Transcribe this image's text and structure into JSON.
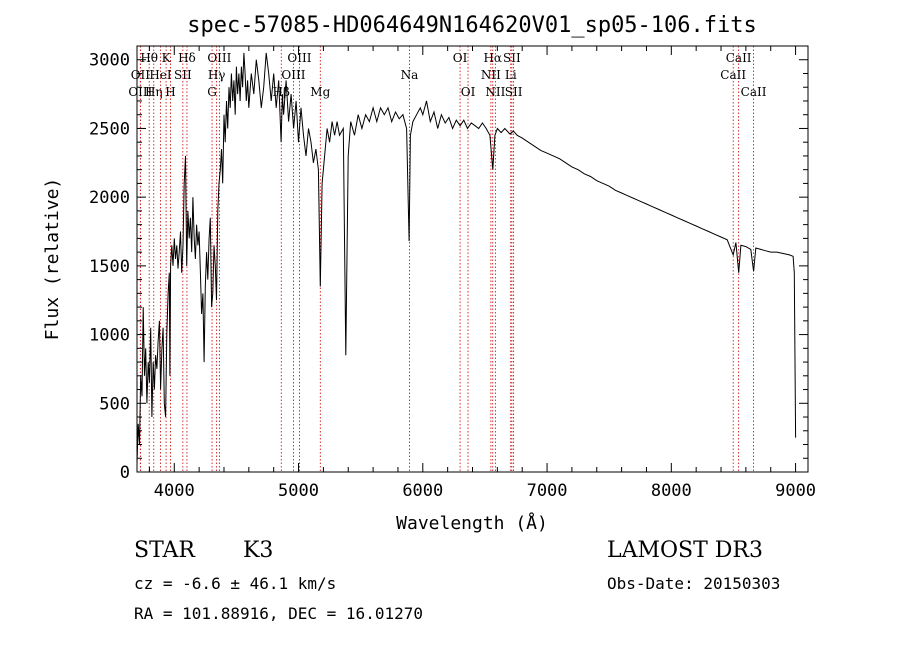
{
  "chart_data": {
    "type": "line",
    "title": "spec-57085-HD064649N164620V01_sp05-106.fits",
    "xlabel": "Wavelength (Å)",
    "ylabel": "Flux (relative)",
    "xlim": [
      3700,
      9100
    ],
    "ylim": [
      0,
      3100
    ],
    "xticks": [
      4000,
      5000,
      6000,
      7000,
      8000,
      9000
    ],
    "yticks": [
      0,
      500,
      1000,
      1500,
      2000,
      2500,
      3000
    ],
    "grid": false,
    "series": [
      {
        "values": [
          [
            3700,
            60
          ],
          [
            3710,
            350
          ],
          [
            3720,
            200
          ],
          [
            3730,
            700
          ],
          [
            3740,
            550
          ],
          [
            3750,
            1200
          ],
          [
            3760,
            700
          ],
          [
            3770,
            900
          ],
          [
            3780,
            500
          ],
          [
            3790,
            800
          ],
          [
            3800,
            650
          ],
          [
            3810,
            1050
          ],
          [
            3820,
            400
          ],
          [
            3830,
            800
          ],
          [
            3840,
            600
          ],
          [
            3850,
            850
          ],
          [
            3860,
            750
          ],
          [
            3870,
            950
          ],
          [
            3880,
            1100
          ],
          [
            3890,
            600
          ],
          [
            3900,
            900
          ],
          [
            3910,
            1050
          ],
          [
            3920,
            500
          ],
          [
            3930,
            400
          ],
          [
            3940,
            1000
          ],
          [
            3950,
            1300
          ],
          [
            3960,
            1450
          ],
          [
            3965,
            700
          ],
          [
            3970,
            1500
          ],
          [
            3980,
            1650
          ],
          [
            3990,
            1500
          ],
          [
            4000,
            1700
          ],
          [
            4010,
            1550
          ],
          [
            4020,
            1650
          ],
          [
            4030,
            1480
          ],
          [
            4040,
            1600
          ],
          [
            4050,
            1750
          ],
          [
            4060,
            1450
          ],
          [
            4070,
            1650
          ],
          [
            4080,
            2100
          ],
          [
            4090,
            2300
          ],
          [
            4100,
            1500
          ],
          [
            4110,
            1900
          ],
          [
            4120,
            1700
          ],
          [
            4130,
            1850
          ],
          [
            4140,
            1600
          ],
          [
            4150,
            2000
          ],
          [
            4160,
            1700
          ],
          [
            4170,
            1550
          ],
          [
            4180,
            1800
          ],
          [
            4190,
            1650
          ],
          [
            4200,
            1750
          ],
          [
            4210,
            1450
          ],
          [
            4220,
            1150
          ],
          [
            4230,
            1300
          ],
          [
            4240,
            800
          ],
          [
            4250,
            1350
          ],
          [
            4260,
            1600
          ],
          [
            4270,
            1400
          ],
          [
            4280,
            1700
          ],
          [
            4290,
            1850
          ],
          [
            4300,
            1200
          ],
          [
            4310,
            1300
          ],
          [
            4320,
            1650
          ],
          [
            4330,
            1500
          ],
          [
            4340,
            1250
          ],
          [
            4350,
            1900
          ],
          [
            4360,
            2100
          ],
          [
            4370,
            2200
          ],
          [
            4380,
            2350
          ],
          [
            4390,
            2100
          ],
          [
            4400,
            2600
          ],
          [
            4410,
            2400
          ],
          [
            4420,
            2700
          ],
          [
            4430,
            2500
          ],
          [
            4440,
            2800
          ],
          [
            4450,
            2650
          ],
          [
            4460,
            2900
          ],
          [
            4470,
            2700
          ],
          [
            4480,
            2850
          ],
          [
            4490,
            2600
          ],
          [
            4500,
            2950
          ],
          [
            4510,
            2750
          ],
          [
            4520,
            2900
          ],
          [
            4530,
            2700
          ],
          [
            4540,
            2950
          ],
          [
            4550,
            2800
          ],
          [
            4560,
            3050
          ],
          [
            4570,
            2900
          ],
          [
            4580,
            2700
          ],
          [
            4590,
            2850
          ],
          [
            4600,
            2650
          ],
          [
            4620,
            2900
          ],
          [
            4640,
            2750
          ],
          [
            4660,
            3000
          ],
          [
            4680,
            2850
          ],
          [
            4700,
            2650
          ],
          [
            4720,
            2800
          ],
          [
            4740,
            3050
          ],
          [
            4760,
            2900
          ],
          [
            4780,
            2700
          ],
          [
            4800,
            2900
          ],
          [
            4820,
            2650
          ],
          [
            4840,
            2850
          ],
          [
            4860,
            2400
          ],
          [
            4870,
            2750
          ],
          [
            4880,
            2600
          ],
          [
            4900,
            2850
          ],
          [
            4920,
            2550
          ],
          [
            4940,
            2750
          ],
          [
            4960,
            2500
          ],
          [
            4980,
            2700
          ],
          [
            5000,
            2400
          ],
          [
            5020,
            2650
          ],
          [
            5040,
            2450
          ],
          [
            5060,
            2300
          ],
          [
            5080,
            2500
          ],
          [
            5100,
            2400
          ],
          [
            5120,
            2250
          ],
          [
            5140,
            2350
          ],
          [
            5160,
            2200
          ],
          [
            5175,
            1350
          ],
          [
            5190,
            2100
          ],
          [
            5210,
            2300
          ],
          [
            5230,
            2500
          ],
          [
            5250,
            2400
          ],
          [
            5270,
            2550
          ],
          [
            5290,
            2450
          ],
          [
            5310,
            2550
          ],
          [
            5330,
            2450
          ],
          [
            5360,
            2500
          ],
          [
            5380,
            850
          ],
          [
            5400,
            2300
          ],
          [
            5420,
            2550
          ],
          [
            5450,
            2450
          ],
          [
            5480,
            2600
          ],
          [
            5510,
            2500
          ],
          [
            5540,
            2600
          ],
          [
            5570,
            2550
          ],
          [
            5600,
            2650
          ],
          [
            5630,
            2550
          ],
          [
            5660,
            2650
          ],
          [
            5690,
            2600
          ],
          [
            5720,
            2650
          ],
          [
            5750,
            2550
          ],
          [
            5780,
            2620
          ],
          [
            5810,
            2570
          ],
          [
            5840,
            2600
          ],
          [
            5870,
            2500
          ],
          [
            5890,
            1680
          ],
          [
            5900,
            2450
          ],
          [
            5920,
            2550
          ],
          [
            5950,
            2600
          ],
          [
            5980,
            2650
          ],
          [
            6000,
            2600
          ],
          [
            6030,
            2700
          ],
          [
            6060,
            2550
          ],
          [
            6090,
            2620
          ],
          [
            6120,
            2500
          ],
          [
            6150,
            2600
          ],
          [
            6180,
            2540
          ],
          [
            6210,
            2580
          ],
          [
            6240,
            2500
          ],
          [
            6270,
            2560
          ],
          [
            6300,
            2520
          ],
          [
            6330,
            2560
          ],
          [
            6360,
            2500
          ],
          [
            6390,
            2540
          ],
          [
            6420,
            2520
          ],
          [
            6450,
            2500
          ],
          [
            6480,
            2540
          ],
          [
            6510,
            2500
          ],
          [
            6540,
            2450
          ],
          [
            6563,
            2200
          ],
          [
            6580,
            2450
          ],
          [
            6600,
            2500
          ],
          [
            6630,
            2470
          ],
          [
            6660,
            2500
          ],
          [
            6700,
            2460
          ],
          [
            6730,
            2480
          ],
          [
            6760,
            2450
          ],
          [
            6800,
            2430
          ],
          [
            6850,
            2400
          ],
          [
            6900,
            2370
          ],
          [
            6950,
            2340
          ],
          [
            7000,
            2320
          ],
          [
            7050,
            2300
          ],
          [
            7100,
            2280
          ],
          [
            7150,
            2250
          ],
          [
            7200,
            2220
          ],
          [
            7250,
            2200
          ],
          [
            7300,
            2170
          ],
          [
            7350,
            2150
          ],
          [
            7400,
            2120
          ],
          [
            7450,
            2100
          ],
          [
            7500,
            2080
          ],
          [
            7550,
            2050
          ],
          [
            7600,
            2030
          ],
          [
            7650,
            2010
          ],
          [
            7700,
            1990
          ],
          [
            7750,
            1970
          ],
          [
            7800,
            1950
          ],
          [
            7850,
            1930
          ],
          [
            7900,
            1910
          ],
          [
            7950,
            1890
          ],
          [
            8000,
            1870
          ],
          [
            8050,
            1850
          ],
          [
            8100,
            1830
          ],
          [
            8150,
            1810
          ],
          [
            8200,
            1790
          ],
          [
            8250,
            1770
          ],
          [
            8300,
            1750
          ],
          [
            8350,
            1730
          ],
          [
            8400,
            1710
          ],
          [
            8450,
            1690
          ],
          [
            8498,
            1580
          ],
          [
            8520,
            1670
          ],
          [
            8542,
            1450
          ],
          [
            8560,
            1650
          ],
          [
            8600,
            1640
          ],
          [
            8640,
            1620
          ],
          [
            8662,
            1460
          ],
          [
            8680,
            1630
          ],
          [
            8720,
            1620
          ],
          [
            8760,
            1610
          ],
          [
            8800,
            1600
          ],
          [
            8850,
            1600
          ],
          [
            8900,
            1590
          ],
          [
            8950,
            1580
          ],
          [
            8980,
            1570
          ],
          [
            8990,
            1450
          ],
          [
            9000,
            250
          ]
        ]
      }
    ],
    "line_markers": [
      {
        "label": "Hθ",
        "x": 3798,
        "row": 0
      },
      {
        "label": "OII",
        "x": 3727,
        "row": 1
      },
      {
        "label": "OIII",
        "x": 3727,
        "row": 2
      },
      {
        "label": "Hη",
        "x": 3835,
        "row": 2
      },
      {
        "label": "K",
        "x": 3934,
        "row": 0
      },
      {
        "label": "HeI",
        "x": 3889,
        "row": 1
      },
      {
        "label": "SII",
        "x": 4069,
        "row": 1
      },
      {
        "label": "H",
        "x": 3969,
        "row": 2
      },
      {
        "label": "Hδ",
        "x": 4102,
        "row": 0
      },
      {
        "label": "OIII",
        "x": 4363,
        "row": 0
      },
      {
        "label": "Hγ",
        "x": 4341,
        "row": 1
      },
      {
        "label": "G",
        "x": 4304,
        "row": 2
      },
      {
        "label": "OIII",
        "x": 5007,
        "row": 0
      },
      {
        "label": "OIII",
        "x": 4959,
        "row": 1
      },
      {
        "label": "Hβ",
        "x": 4861,
        "row": 2
      },
      {
        "label": "Mg",
        "x": 5175,
        "row": 2
      },
      {
        "label": "Na",
        "x": 5893,
        "row": 1
      },
      {
        "label": "OI",
        "x": 6300,
        "row": 0
      },
      {
        "label": "OI",
        "x": 6364,
        "row": 2
      },
      {
        "label": "Hα",
        "x": 6563,
        "row": 0
      },
      {
        "label": "NII",
        "x": 6548,
        "row": 1
      },
      {
        "label": "NII",
        "x": 6584,
        "row": 2
      },
      {
        "label": "SII",
        "x": 6717,
        "row": 0
      },
      {
        "label": "Li",
        "x": 6708,
        "row": 1
      },
      {
        "label": "SII",
        "x": 6731,
        "row": 2
      },
      {
        "label": "CaII",
        "x": 8542,
        "row": 0
      },
      {
        "label": "CaII",
        "x": 8498,
        "row": 1
      },
      {
        "label": "CaII",
        "x": 8662,
        "row": 2
      }
    ]
  },
  "info": {
    "object_class": "STAR",
    "subclass": "K3",
    "survey": "LAMOST DR3",
    "cz": "cz = -6.6 ± 46.1 km/s",
    "obs_date": "Obs-Date: 20150303",
    "coords": "RA = 101.88916, DEC =  16.01270"
  },
  "colors": {
    "line": "#000000",
    "marker": "#cc0000",
    "background": "#ffffff"
  }
}
